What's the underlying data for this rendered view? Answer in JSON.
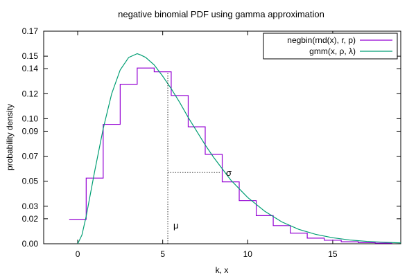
{
  "chart_data": {
    "type": "line",
    "title": "negative binomial PDF using gamma approximation",
    "xlabel": "k, x",
    "ylabel": "probability density",
    "xlim": [
      -2,
      19
    ],
    "ylim": [
      0,
      0.17
    ],
    "x_ticks": [
      0,
      5,
      10,
      15
    ],
    "x_tick_labels": [
      "0",
      "5",
      "10",
      "15"
    ],
    "y_ticks": [
      0,
      0.02,
      0.03,
      0.05,
      0.07,
      0.09,
      0.1,
      0.12,
      0.14,
      0.15,
      0.17
    ],
    "y_tick_labels": [
      "0.00",
      "0.02",
      "0.03",
      "0.05",
      "0.07",
      "0.09",
      "0.10",
      "0.12",
      "0.14",
      "0.15",
      "0.17"
    ],
    "grid": false,
    "legend": "top-right",
    "series": [
      {
        "name": "negbin(rnd(x), r, p)",
        "kind": "step",
        "color": "#9400d3",
        "k": [
          0,
          1,
          2,
          3,
          4,
          5,
          6,
          7,
          8,
          9,
          10,
          11,
          12,
          13,
          14,
          15,
          16,
          17,
          18
        ],
        "values": [
          0.0195,
          0.0525,
          0.0955,
          0.1275,
          0.1405,
          0.1375,
          0.1185,
          0.0935,
          0.0715,
          0.0495,
          0.0345,
          0.0225,
          0.0145,
          0.0085,
          0.0045,
          0.0028,
          0.0016,
          0.0009,
          0.0005
        ]
      },
      {
        "name": "gmm(x, ρ, λ)",
        "kind": "line",
        "color": "#009e73",
        "x": [
          0,
          0.25,
          0.5,
          0.75,
          1,
          1.5,
          2,
          2.5,
          3,
          3.5,
          3.7,
          4,
          4.5,
          5,
          5.5,
          6,
          6.5,
          7,
          7.5,
          8,
          8.5,
          9,
          9.5,
          10,
          11,
          12,
          13,
          14,
          15,
          16,
          17,
          18,
          19
        ],
        "values": [
          0.0,
          0.007,
          0.022,
          0.04,
          0.058,
          0.092,
          0.12,
          0.139,
          0.149,
          0.152,
          0.151,
          0.149,
          0.143,
          0.134,
          0.124,
          0.113,
          0.101,
          0.09,
          0.079,
          0.069,
          0.06,
          0.051,
          0.044,
          0.037,
          0.026,
          0.0175,
          0.0115,
          0.0075,
          0.0048,
          0.003,
          0.0019,
          0.0012,
          0.0007
        ]
      }
    ],
    "annotations": [
      {
        "text": "μ",
        "x": 5.3,
        "y": 0.015
      },
      {
        "text": "σ",
        "x": 8.4,
        "y": 0.057
      }
    ],
    "mu_line": {
      "x": 5.3,
      "y_top": 0.1375
    },
    "sigma_line": {
      "x_start": 5.3,
      "x_end": 8.4,
      "y": 0.057
    }
  }
}
